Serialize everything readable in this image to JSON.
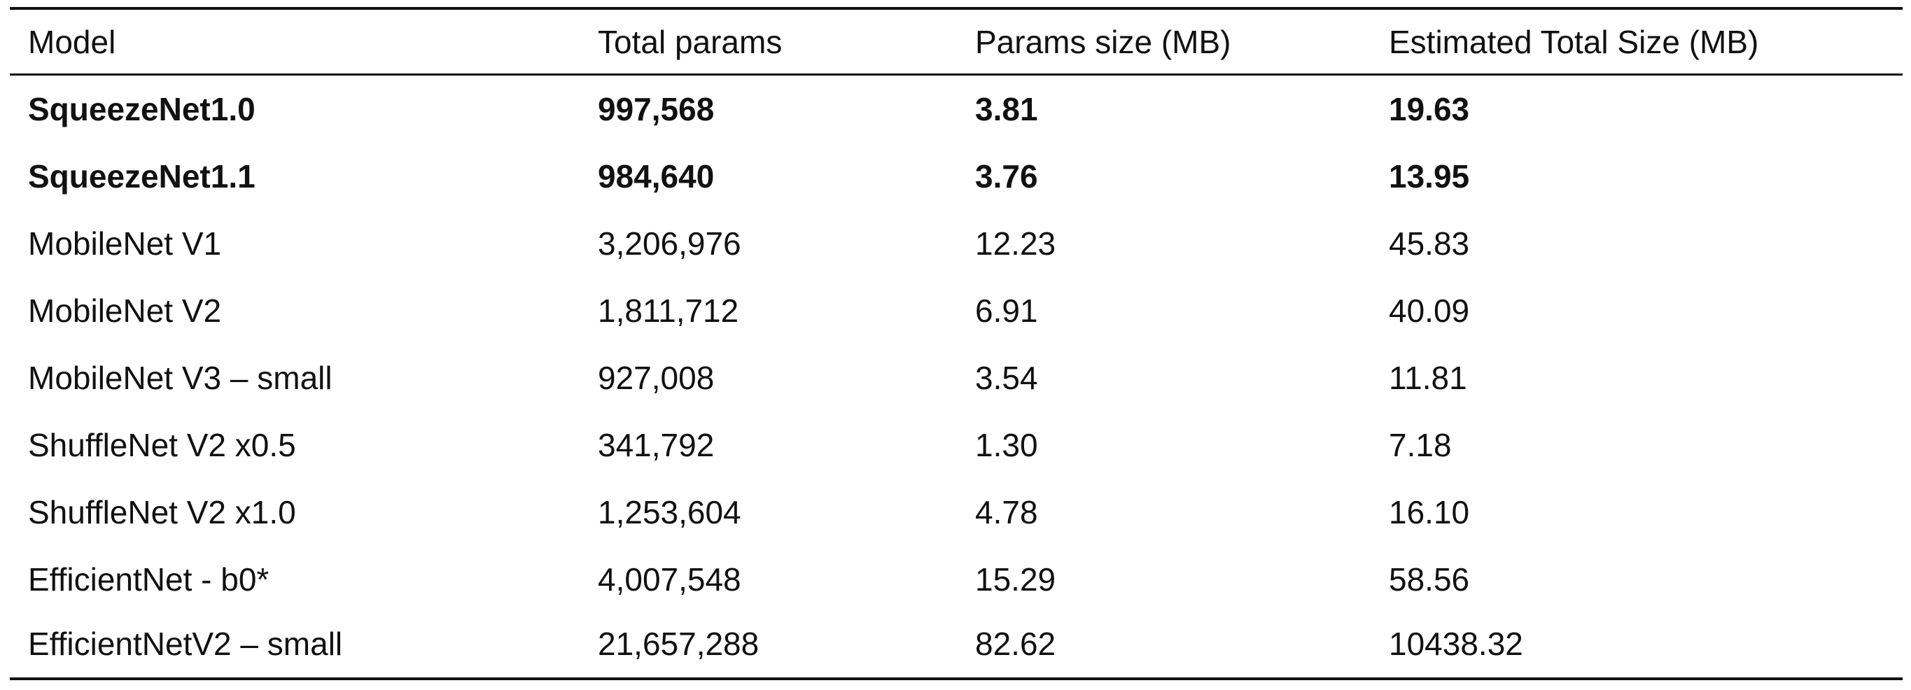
{
  "table": {
    "headers": [
      "Model",
      "Total params",
      "Params size (MB)",
      "Estimated Total Size (MB)"
    ],
    "rows": [
      {
        "cells": [
          "SqueezeNet1.0",
          "997,568",
          "3.81",
          "19.63"
        ],
        "bold": true
      },
      {
        "cells": [
          "SqueezeNet1.1",
          "984,640",
          "3.76",
          "13.95"
        ],
        "bold": true
      },
      {
        "cells": [
          "MobileNet V1",
          "3,206,976",
          "12.23",
          "45.83"
        ],
        "bold": false
      },
      {
        "cells": [
          "MobileNet V2",
          "1,811,712",
          "6.91",
          "40.09"
        ],
        "bold": false
      },
      {
        "cells": [
          "MobileNet V3 – small",
          "927,008",
          "3.54",
          "11.81"
        ],
        "bold": false
      },
      {
        "cells": [
          "ShuffleNet V2 x0.5",
          "341,792",
          "1.30",
          "7.18"
        ],
        "bold": false
      },
      {
        "cells": [
          "ShuffleNet V2 x1.0",
          "1,253,604",
          "4.78",
          "16.10"
        ],
        "bold": false
      },
      {
        "cells": [
          "EfficientNet - b0*",
          "4,007,548",
          "15.29",
          "58.56"
        ],
        "bold": false
      },
      {
        "cells": [
          "EfficientNetV2 – small",
          "21,657,288",
          "82.62",
          "10438.32"
        ],
        "bold": false
      }
    ]
  }
}
